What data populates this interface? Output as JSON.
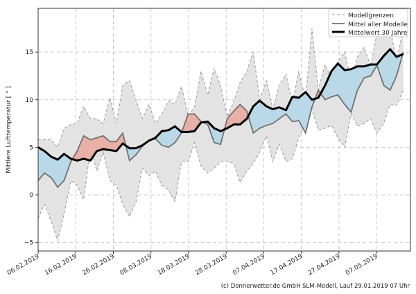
{
  "chart_data": {
    "type": "area",
    "title": "",
    "ylabel": "Mittlere Lufttemperatur [ ° ]",
    "xlabel": "",
    "ylim": [
      -5.9,
      19.6
    ],
    "xlim": [
      0,
      99
    ],
    "grid": true,
    "yticks": [
      -5,
      0,
      5,
      10,
      15
    ],
    "xtick_days": [
      0,
      10,
      20,
      30,
      40,
      50,
      60,
      70,
      80,
      90
    ],
    "xtick_labels": [
      "06.02.2019",
      "16.02.2019",
      "26.02.2019",
      "08.03.2019",
      "18.03.2019",
      "28.03.2019",
      "07.04.2019",
      "17.04.2019",
      "27.04.2019",
      "07.05.2019"
    ],
    "x_days": [
      0,
      1.7,
      3.5,
      5.2,
      6.9,
      8.7,
      10.4,
      12.1,
      13.9,
      15.6,
      17.3,
      19.1,
      20.8,
      22.5,
      24.3,
      26,
      27.7,
      29.5,
      31.2,
      32.9,
      34.7,
      36.4,
      38.1,
      39.9,
      41.6,
      43.3,
      45.1,
      46.8,
      48.5,
      50.3,
      52,
      53.7,
      55.5,
      57.2,
      58.9,
      60.7,
      62.4,
      64.1,
      65.9,
      67.6,
      69.3,
      71.1,
      72.8,
      74.5,
      76.3,
      78,
      79.7,
      81.5,
      83.2,
      84.9,
      86.7,
      88.4,
      90.1,
      91.9,
      93.6,
      95.3,
      97.1
    ],
    "series": [
      {
        "name": "Modellgrenzen (oben)",
        "values": [
          5.8,
          5.8,
          5.8,
          5.0,
          7.0,
          7.4,
          7.5,
          9.3,
          8.0,
          8.0,
          7.5,
          10.2,
          7.5,
          11.5,
          12.0,
          10.0,
          8.0,
          9.5,
          7.5,
          8.5,
          9.9,
          9.5,
          11.4,
          8.3,
          9.2,
          13.0,
          10.5,
          13.3,
          11.5,
          8.2,
          9.8,
          11.8,
          13.0,
          15.0,
          10.0,
          12.0,
          9.0,
          11.5,
          12.7,
          9.5,
          13.0,
          10.0,
          17.5,
          11.0,
          13.7,
          12.2,
          14.0,
          15.0,
          12.0,
          14.5,
          15.5,
          13.5,
          17.0,
          16.8,
          17.5,
          14.0,
          17.5
        ]
      },
      {
        "name": "Modellgrenzen (unten)",
        "values": [
          -2.5,
          -1.0,
          -2.8,
          -4.8,
          -2.0,
          1.5,
          1.0,
          -0.5,
          4.8,
          2.5,
          4.5,
          1.5,
          1.0,
          -1.0,
          -2.3,
          -0.8,
          2.8,
          2.0,
          2.5,
          1.0,
          0.5,
          -0.7,
          3.5,
          3.5,
          5.5,
          3.0,
          2.3,
          2.8,
          3.5,
          3.5,
          3.3,
          1.3,
          2.5,
          3.3,
          4.5,
          6.2,
          3.5,
          5.3,
          3.5,
          3.8,
          6.0,
          7.5,
          9.0,
          6.8,
          7.0,
          7.3,
          6.0,
          5.0,
          8.5,
          7.2,
          7.5,
          8.0,
          6.5,
          7.5,
          9.5,
          9.4,
          11.0
        ]
      },
      {
        "name": "Mittel aller Modelle",
        "values": [
          1.5,
          2.3,
          1.8,
          0.8,
          1.5,
          3.5,
          4.6,
          6.2,
          5.8,
          6.0,
          6.2,
          5.6,
          5.6,
          6.5,
          3.6,
          4.2,
          5.1,
          5.7,
          5.9,
          5.2,
          5.0,
          5.5,
          6.5,
          8.5,
          8.5,
          7.7,
          7.4,
          5.5,
          5.3,
          8.0,
          8.8,
          9.5,
          8.8,
          6.5,
          7.0,
          7.3,
          7.5,
          8.0,
          8.5,
          7.7,
          7.8,
          6.5,
          9.2,
          11.0,
          10.0,
          10.3,
          10.5,
          9.5,
          8.7,
          11.0,
          12.3,
          12.5,
          13.6,
          11.5,
          11.0,
          12.5,
          15.0
        ]
      },
      {
        "name": "Mittelwert 30 Jahre",
        "values": [
          5.0,
          4.6,
          4.0,
          3.7,
          4.3,
          3.8,
          3.6,
          3.8,
          3.6,
          4.6,
          4.8,
          4.7,
          4.6,
          5.4,
          4.9,
          4.9,
          5.2,
          5.7,
          6.0,
          6.7,
          6.8,
          7.2,
          6.6,
          6.6,
          6.7,
          7.6,
          7.7,
          7.0,
          6.7,
          7.0,
          7.4,
          7.4,
          8.0,
          9.3,
          9.9,
          9.3,
          9.0,
          9.2,
          8.9,
          10.3,
          10.2,
          10.8,
          10.0,
          10.2,
          11.5,
          13.0,
          13.8,
          13.1,
          13.2,
          13.5,
          13.5,
          13.7,
          13.7,
          14.6,
          15.3,
          14.5,
          14.8
        ]
      }
    ],
    "legend": {
      "placement": "top-right",
      "entries": [
        "Modellgrenzen",
        "Mittel aller Modelle",
        "Mittelwert 30 Jahre"
      ]
    },
    "colors": {
      "range_fill": "#e3e3e3",
      "range_edge": "#999999",
      "model_mean": "#707070",
      "clim_mean": "#000000",
      "warmer": "#e8b0a6",
      "colder": "#b9d9e8"
    },
    "footer": "(c) Donnerwetter.de GmbH SLM-Modell, Lauf 29.01.2019 07 Uhr"
  }
}
